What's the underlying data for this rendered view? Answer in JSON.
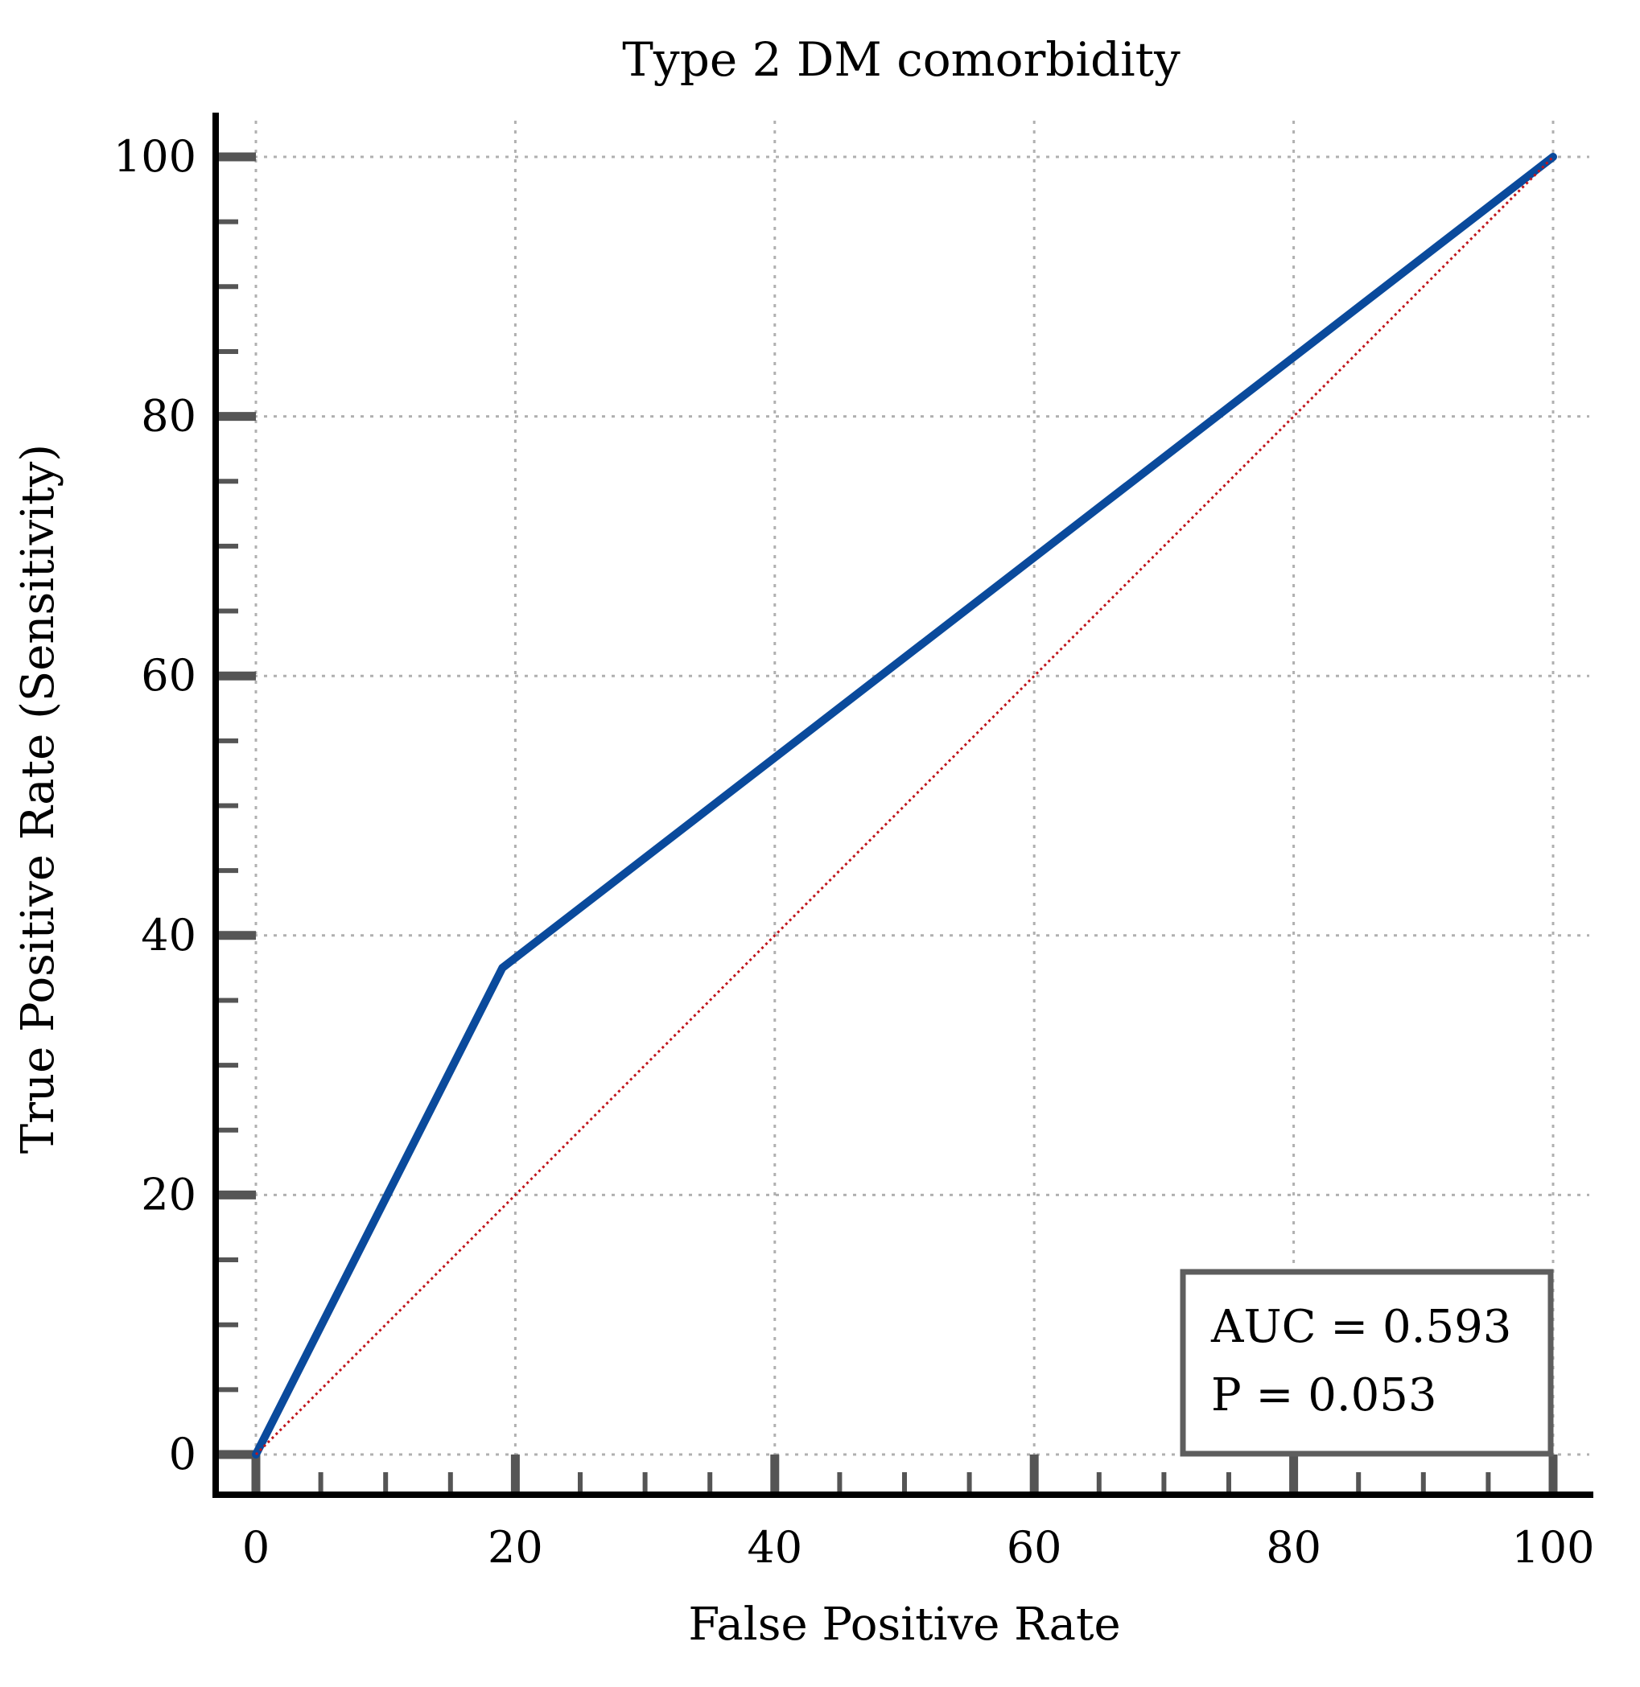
{
  "chart_data": {
    "type": "line",
    "title": "Type 2 DM comorbidity",
    "xlabel": "False Positive Rate",
    "ylabel": "True Positive Rate (Sensitivity)",
    "xlim": [
      0,
      100
    ],
    "ylim": [
      0,
      100
    ],
    "x_ticks": [
      "0",
      "20",
      "40",
      "60",
      "80",
      "100"
    ],
    "y_ticks": [
      "0",
      "20",
      "40",
      "60",
      "80",
      "100"
    ],
    "grid": true,
    "series": [
      {
        "name": "ROC curve",
        "color": "#0a4a9c",
        "style": "solid",
        "x": [
          0,
          19,
          100
        ],
        "y": [
          0,
          37.5,
          100
        ]
      },
      {
        "name": "Reference line",
        "color": "#c0151b",
        "style": "dotted",
        "x": [
          0,
          100
        ],
        "y": [
          0,
          100
        ]
      }
    ],
    "annotation": {
      "auc": "AUC = 0.593",
      "p": "P = 0.053"
    }
  }
}
